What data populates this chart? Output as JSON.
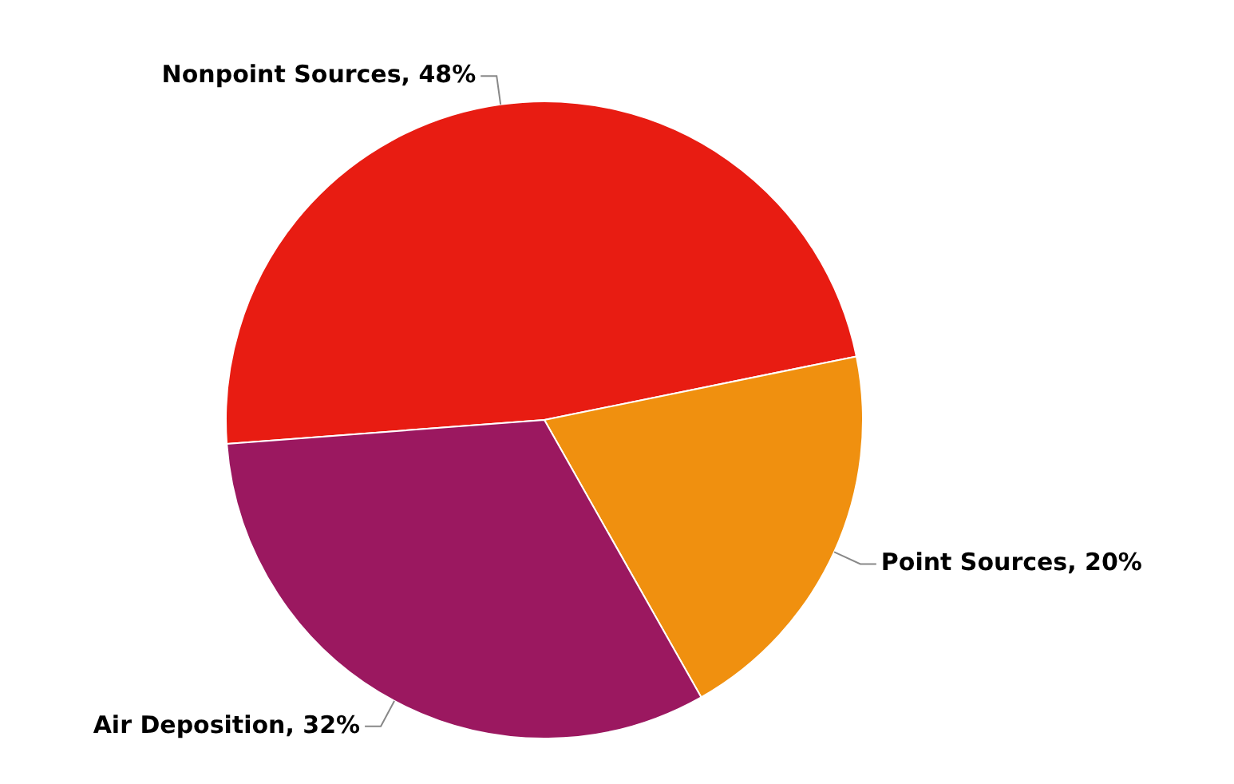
{
  "chart_data": {
    "type": "pie",
    "categories": [
      "Nonpoint Sources",
      "Point Sources",
      "Air Deposition"
    ],
    "values": [
      48,
      20,
      32
    ],
    "value_labels": [
      "48%",
      "20%",
      "32%"
    ],
    "colors": [
      "#e81c12",
      "#f0900f",
      "#9b1860"
    ]
  }
}
